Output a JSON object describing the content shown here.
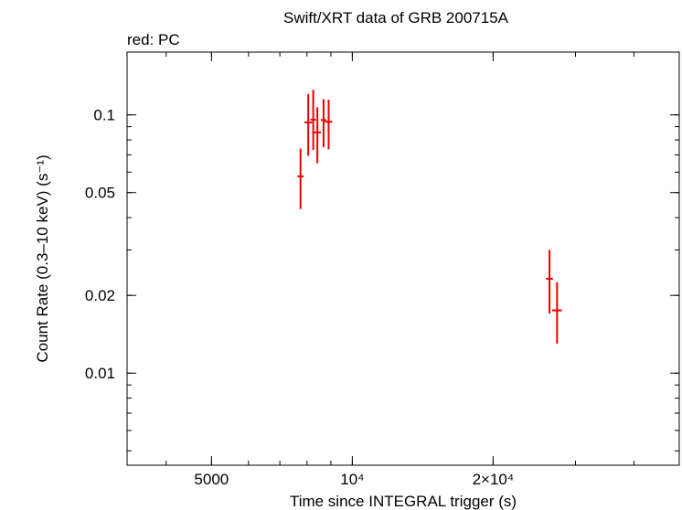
{
  "chart_data": {
    "type": "scatter",
    "title": "Swift/XRT data of GRB 200715A",
    "subtitle": "red: PC",
    "xlabel": "Time since INTEGRAL trigger (s)",
    "ylabel": "Count Rate (0.3–10 keV) (s⁻¹)",
    "x_scale": "log",
    "y_scale": "log",
    "xlim": [
      3300,
      50000
    ],
    "ylim": [
      0.0044,
      0.175
    ],
    "x_ticks": [
      {
        "value": 5000,
        "label": "5000"
      },
      {
        "value": 10000,
        "label": "10⁴"
      },
      {
        "value": 20000,
        "label": "2×10⁴"
      }
    ],
    "y_ticks": [
      {
        "value": 0.1,
        "label": "0.1"
      },
      {
        "value": 0.05,
        "label": "0.05"
      },
      {
        "value": 0.02,
        "label": "0.02"
      },
      {
        "value": 0.01,
        "label": "0.01"
      }
    ],
    "series": [
      {
        "name": "PC",
        "color": "#ee0000",
        "points": [
          {
            "x": 7750,
            "xerr": [
              120,
              120
            ],
            "y": 0.0578,
            "yerr": [
              0.0146,
              0.0163
            ]
          },
          {
            "x": 8050,
            "xerr": [
              150,
              150
            ],
            "y": 0.0935,
            "yerr": [
              0.024,
              0.027
            ]
          },
          {
            "x": 8250,
            "xerr": [
              110,
              110
            ],
            "y": 0.0958,
            "yerr": [
              0.0228,
              0.0292
            ]
          },
          {
            "x": 8420,
            "xerr": [
              150,
              150
            ],
            "y": 0.0855,
            "yerr": [
              0.0205,
              0.0215
            ]
          },
          {
            "x": 8680,
            "xerr": [
              120,
              120
            ],
            "y": 0.0955,
            "yerr": [
              0.0205,
              0.0195
            ]
          },
          {
            "x": 8900,
            "xerr": [
              160,
              160
            ],
            "y": 0.094,
            "yerr": [
              0.0205,
              0.0205
            ]
          },
          {
            "x": 26400,
            "xerr": [
              450,
              450
            ],
            "y": 0.0232,
            "yerr": [
              0.0062,
              0.0068
            ]
          },
          {
            "x": 27400,
            "xerr": [
              650,
              650
            ],
            "y": 0.0175,
            "yerr": [
              0.0045,
              0.005
            ]
          }
        ]
      }
    ]
  }
}
